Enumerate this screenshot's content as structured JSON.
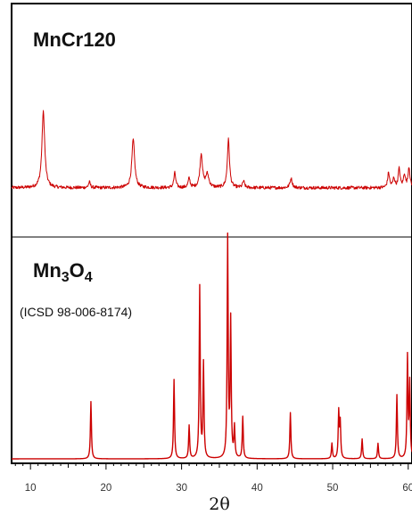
{
  "chart_data": {
    "type": "line",
    "xlabel": "2θ",
    "x_ticks": [
      10,
      20,
      30,
      40,
      50,
      60
    ],
    "xlim": [
      7.5,
      60.5
    ],
    "colors": {
      "pattern": "#cc0000",
      "frame": "#000000",
      "axis_text": "#333333"
    },
    "panels": [
      {
        "title": "MnCr120",
        "subtitle": "",
        "kind": "noisy-line",
        "ylim": [
          0,
          1
        ],
        "baseline": 0.05,
        "noise": 0.035,
        "peaks": [
          {
            "x": 11.7,
            "height": 0.82,
            "width": 0.22
          },
          {
            "x": 17.8,
            "height": 0.06,
            "width": 0.15
          },
          {
            "x": 23.6,
            "height": 0.52,
            "width": 0.22
          },
          {
            "x": 29.1,
            "height": 0.16,
            "width": 0.15
          },
          {
            "x": 31.0,
            "height": 0.1,
            "width": 0.15
          },
          {
            "x": 32.6,
            "height": 0.36,
            "width": 0.2
          },
          {
            "x": 33.4,
            "height": 0.14,
            "width": 0.25
          },
          {
            "x": 36.2,
            "height": 0.52,
            "width": 0.17
          },
          {
            "x": 38.2,
            "height": 0.07,
            "width": 0.15
          },
          {
            "x": 44.5,
            "height": 0.1,
            "width": 0.18
          },
          {
            "x": 57.4,
            "height": 0.16,
            "width": 0.15
          },
          {
            "x": 58.1,
            "height": 0.1,
            "width": 0.15
          },
          {
            "x": 58.8,
            "height": 0.2,
            "width": 0.15
          },
          {
            "x": 59.5,
            "height": 0.14,
            "width": 0.15
          },
          {
            "x": 60.1,
            "height": 0.22,
            "width": 0.15
          }
        ]
      },
      {
        "title": "Mn3O4",
        "subtitle": "(ICSD 98-006-8174)",
        "kind": "stick-pattern",
        "ylim": [
          0,
          1
        ],
        "baseline": 0.0,
        "peaks": [
          {
            "x": 18.0,
            "height": 0.26
          },
          {
            "x": 29.0,
            "height": 0.36
          },
          {
            "x": 31.0,
            "height": 0.15
          },
          {
            "x": 32.4,
            "height": 0.78
          },
          {
            "x": 32.9,
            "height": 0.43
          },
          {
            "x": 36.1,
            "height": 1.0
          },
          {
            "x": 36.5,
            "height": 0.62
          },
          {
            "x": 37.0,
            "height": 0.14
          },
          {
            "x": 38.1,
            "height": 0.19
          },
          {
            "x": 44.4,
            "height": 0.21
          },
          {
            "x": 49.9,
            "height": 0.07
          },
          {
            "x": 50.8,
            "height": 0.21
          },
          {
            "x": 51.0,
            "height": 0.16
          },
          {
            "x": 53.9,
            "height": 0.09
          },
          {
            "x": 56.0,
            "height": 0.07
          },
          {
            "x": 58.5,
            "height": 0.29
          },
          {
            "x": 59.9,
            "height": 0.46
          },
          {
            "x": 60.2,
            "height": 0.34
          }
        ]
      }
    ]
  }
}
